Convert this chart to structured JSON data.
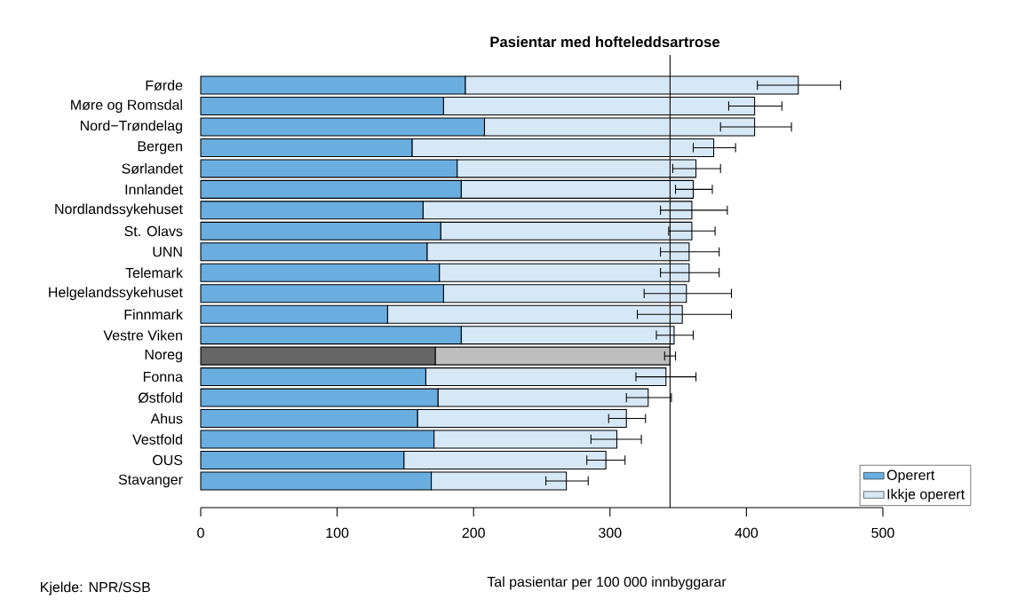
{
  "chart_data": {
    "type": "bar",
    "orientation": "horizontal",
    "stacked": true,
    "title": "Pasientar med  hofteleddsartrose",
    "xlabel": "Tal pasientar per 100 000 innbyggarar",
    "annotations": [
      "Kjelde: NPR/SSB"
    ],
    "categories": [
      "Førde",
      "Møre og Romsdal",
      "Nord−Trøndelag",
      "Bergen",
      "Sørlandet",
      "Innlandet",
      "Nordlandssykehuset",
      "St. Olavs",
      "UNN",
      "Telemark",
      "Helgelandssykehuset",
      "Finnmark",
      "Vestre Viken",
      "Noreg",
      "Fonna",
      "Østfold",
      "Ahus",
      "Vestfold",
      "OUS",
      "Stavanger"
    ],
    "series": [
      {
        "name": "Operert",
        "color": "#6aaee0",
        "colors": [
          "#6aaee0",
          "#6aaee0",
          "#6aaee0",
          "#6aaee0",
          "#6aaee0",
          "#6aaee0",
          "#6aaee0",
          "#6aaee0",
          "#6aaee0",
          "#6aaee0",
          "#6aaee0",
          "#6aaee0",
          "#6aaee0",
          "#666666",
          "#6aaee0",
          "#6aaee0",
          "#6aaee0",
          "#6aaee0",
          "#6aaee0",
          "#6aaee0"
        ],
        "values": [
          194,
          178,
          208,
          155,
          188,
          191,
          163,
          176,
          166,
          175,
          178,
          137,
          191,
          172,
          165,
          174,
          159,
          171,
          149,
          169
        ]
      },
      {
        "name": "Ikkje operert",
        "color": "#d6e8f6",
        "colors": [
          "#d6e8f6",
          "#d6e8f6",
          "#d6e8f6",
          "#d6e8f6",
          "#d6e8f6",
          "#d6e8f6",
          "#d6e8f6",
          "#d6e8f6",
          "#d6e8f6",
          "#d6e8f6",
          "#d6e8f6",
          "#d6e8f6",
          "#d6e8f6",
          "#bebebe",
          "#d6e8f6",
          "#d6e8f6",
          "#d6e8f6",
          "#d6e8f6",
          "#d6e8f6",
          "#d6e8f6"
        ],
        "values": [
          244,
          228,
          198,
          221,
          175,
          170,
          197,
          184,
          192,
          183,
          178,
          216,
          156,
          172,
          176,
          154,
          153,
          134,
          148,
          99
        ],
        "errors": [
          [
            408,
            469
          ],
          [
            387,
            426
          ],
          [
            381,
            433
          ],
          [
            361,
            392
          ],
          [
            346,
            381
          ],
          [
            348,
            375
          ],
          [
            337,
            386
          ],
          [
            343,
            377
          ],
          [
            337,
            380
          ],
          [
            337,
            380
          ],
          [
            325,
            389
          ],
          [
            320,
            389
          ],
          [
            334,
            361
          ],
          [
            340,
            348
          ],
          [
            319,
            363
          ],
          [
            312,
            345
          ],
          [
            299,
            326
          ],
          [
            286,
            323
          ],
          [
            283,
            311
          ],
          [
            253,
            284
          ]
        ]
      }
    ],
    "xlim": [
      0,
      500
    ],
    "xticks": [
      0,
      100,
      200,
      300,
      400,
      500
    ],
    "ref_lines": [
      {
        "axis": "x",
        "value": 344
      }
    ],
    "legend": "bottom right"
  }
}
